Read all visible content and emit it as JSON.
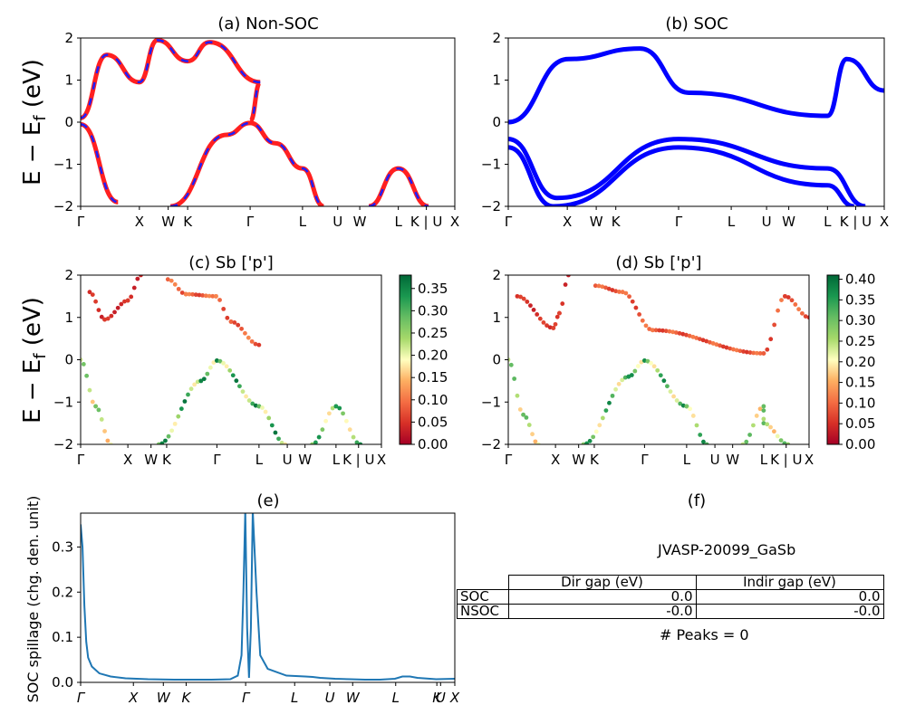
{
  "chart_data": [
    {
      "id": "a",
      "type": "line",
      "title": "(a) Non-SOC",
      "ylabel": "E − E_f (eV)",
      "xlabel": "",
      "ylim": [
        -2,
        2
      ],
      "yticks": [
        "2",
        "1",
        "0",
        "−1",
        "−2"
      ],
      "kpath_ticks": [
        "Γ",
        "X",
        "W",
        "K",
        "Γ",
        "L",
        "U",
        "W",
        "L",
        "K | U",
        "X"
      ],
      "series": [
        {
          "values": [
            0.1,
            1.6,
            0.95,
            1.95,
            1.45,
            1.9,
            0.95,
            0.02
          ]
        },
        {
          "values": [
            -0.05,
            -1.9
          ]
        },
        {
          "values": [
            -2,
            -0.3,
            -0.02,
            -0.5,
            -1.1,
            -2
          ]
        },
        {
          "values": [
            -2,
            -1.1,
            -2
          ]
        }
      ],
      "color": "#ff2020",
      "dash_color": "#1f1fff"
    },
    {
      "id": "b",
      "type": "line",
      "title": "(b) SOC",
      "xlabel": "",
      "ylim": [
        -2,
        2
      ],
      "yticks": [
        "2",
        "1",
        "0",
        "−1",
        "−2"
      ],
      "kpath_ticks": [
        "Γ",
        "X",
        "W",
        "K",
        "Γ",
        "L",
        "U",
        "W",
        "L",
        "K | U",
        "X"
      ],
      "series": [
        {
          "values": [
            0.0,
            1.5,
            1.75,
            0.7,
            0.15,
            1.5,
            0.75
          ]
        },
        {
          "values": [
            -0.4,
            -1.8,
            -0.4,
            -1.1,
            -2
          ]
        },
        {
          "values": [
            -0.6,
            -2,
            -0.6,
            -1.5,
            -2
          ]
        }
      ],
      "color": "#0000ff"
    },
    {
      "id": "c",
      "type": "scatter",
      "title": "(c)  Sb ['p']",
      "ylabel": "E − E_f (eV)",
      "ylim": [
        -2,
        2
      ],
      "yticks": [
        "2",
        "1",
        "0",
        "−1",
        "−2"
      ],
      "kpath_ticks": [
        "Γ",
        "X",
        "W",
        "K",
        "Γ",
        "L",
        "U",
        "W",
        "L",
        "K | U",
        "X"
      ],
      "colorbar": {
        "min": 0.0,
        "max": 0.38,
        "ticks": [
          "0.35",
          "0.30",
          "0.25",
          "0.20",
          "0.15",
          "0.10",
          "0.05",
          "0.00"
        ]
      },
      "bands": [
        {
          "values": [
            0.0,
            -1.1,
            -2.0
          ],
          "weight": 0.25
        },
        {
          "values": [
            1.6,
            0.95,
            1.4,
            2.0
          ],
          "weight": 0.05
        },
        {
          "values": [
            1.9,
            1.55,
            1.5,
            0.9,
            0.35
          ],
          "weight": 0.1
        },
        {
          "values": [
            -2,
            -0.5,
            -0.02,
            -1.1,
            -2
          ],
          "weight": 0.32
        },
        {
          "values": [
            -2,
            -1.1,
            -2
          ],
          "weight": 0.3
        }
      ]
    },
    {
      "id": "d",
      "type": "scatter",
      "title": "(d) Sb ['p']",
      "ylim": [
        -2,
        2
      ],
      "yticks": [
        "2",
        "1",
        "0",
        "−1",
        "−2"
      ],
      "kpath_ticks": [
        "Γ",
        "X",
        "W",
        "K",
        "Γ",
        "L",
        "U",
        "W",
        "L",
        "K | U",
        "X"
      ],
      "colorbar": {
        "min": 0.0,
        "max": 0.41,
        "ticks": [
          "0.40",
          "0.35",
          "0.30",
          "0.25",
          "0.20",
          "0.15",
          "0.10",
          "0.05",
          "0.00"
        ]
      },
      "bands": [
        {
          "values": [
            0.0,
            -1.3,
            -2.0
          ],
          "weight": 0.28
        },
        {
          "values": [
            1.5,
            0.75,
            1.1,
            2.0
          ],
          "weight": 0.06
        },
        {
          "values": [
            1.75,
            1.6,
            0.7,
            0.15,
            1.5,
            1.0
          ],
          "weight": 0.1
        },
        {
          "values": [
            -2,
            -0.4,
            -0.02,
            -1.1,
            -2
          ],
          "weight": 0.33
        },
        {
          "values": [
            -2,
            -1.1,
            -1.5,
            -2
          ],
          "weight": 0.28
        }
      ]
    },
    {
      "id": "e",
      "type": "line",
      "title": "(e)",
      "ylabel": "SOC spillage (chg. den. unit)",
      "ylim": [
        0,
        0.375
      ],
      "yticks": [
        "0.0",
        "0.1",
        "0.2",
        "0.3"
      ],
      "kpath_ticks": [
        "Γ",
        "X",
        "W",
        "K",
        "Γ",
        "L",
        "U",
        "W",
        "L",
        "K",
        "U",
        "X"
      ],
      "series": [
        {
          "x": [
            0,
            0.005,
            0.01,
            0.015,
            0.02,
            0.03,
            0.05,
            0.08,
            0.12,
            0.18,
            0.25,
            0.3,
            0.35,
            0.4,
            0.42,
            0.43,
            0.435,
            0.44,
            0.445,
            0.45,
            0.455,
            0.46,
            0.47,
            0.48,
            0.5,
            0.55,
            0.6,
            0.62,
            0.64,
            0.68,
            0.72,
            0.76,
            0.8,
            0.84,
            0.86,
            0.88,
            0.9,
            0.95,
            1.0
          ],
          "values": [
            0.35,
            0.3,
            0.17,
            0.09,
            0.055,
            0.035,
            0.02,
            0.013,
            0.009,
            0.007,
            0.006,
            0.006,
            0.006,
            0.007,
            0.015,
            0.06,
            0.2,
            0.38,
            0.12,
            0.01,
            0.12,
            0.38,
            0.2,
            0.06,
            0.03,
            0.015,
            0.013,
            0.012,
            0.01,
            0.008,
            0.007,
            0.006,
            0.006,
            0.008,
            0.013,
            0.013,
            0.01,
            0.007,
            0.008
          ]
        }
      ],
      "color": "#1f77b4"
    }
  ],
  "panel_f": {
    "title": "(f)",
    "material": "JVASP-20099_GaSb",
    "table": {
      "headers": [
        "Dir gap (eV)",
        "Indir gap (eV)"
      ],
      "rows": [
        {
          "label": "SOC",
          "dir": "0.0",
          "indir": "0.0"
        },
        {
          "label": "NSOC",
          "dir": "-0.0",
          "indir": "-0.0"
        }
      ]
    },
    "peaks": "# Peaks = 0"
  }
}
